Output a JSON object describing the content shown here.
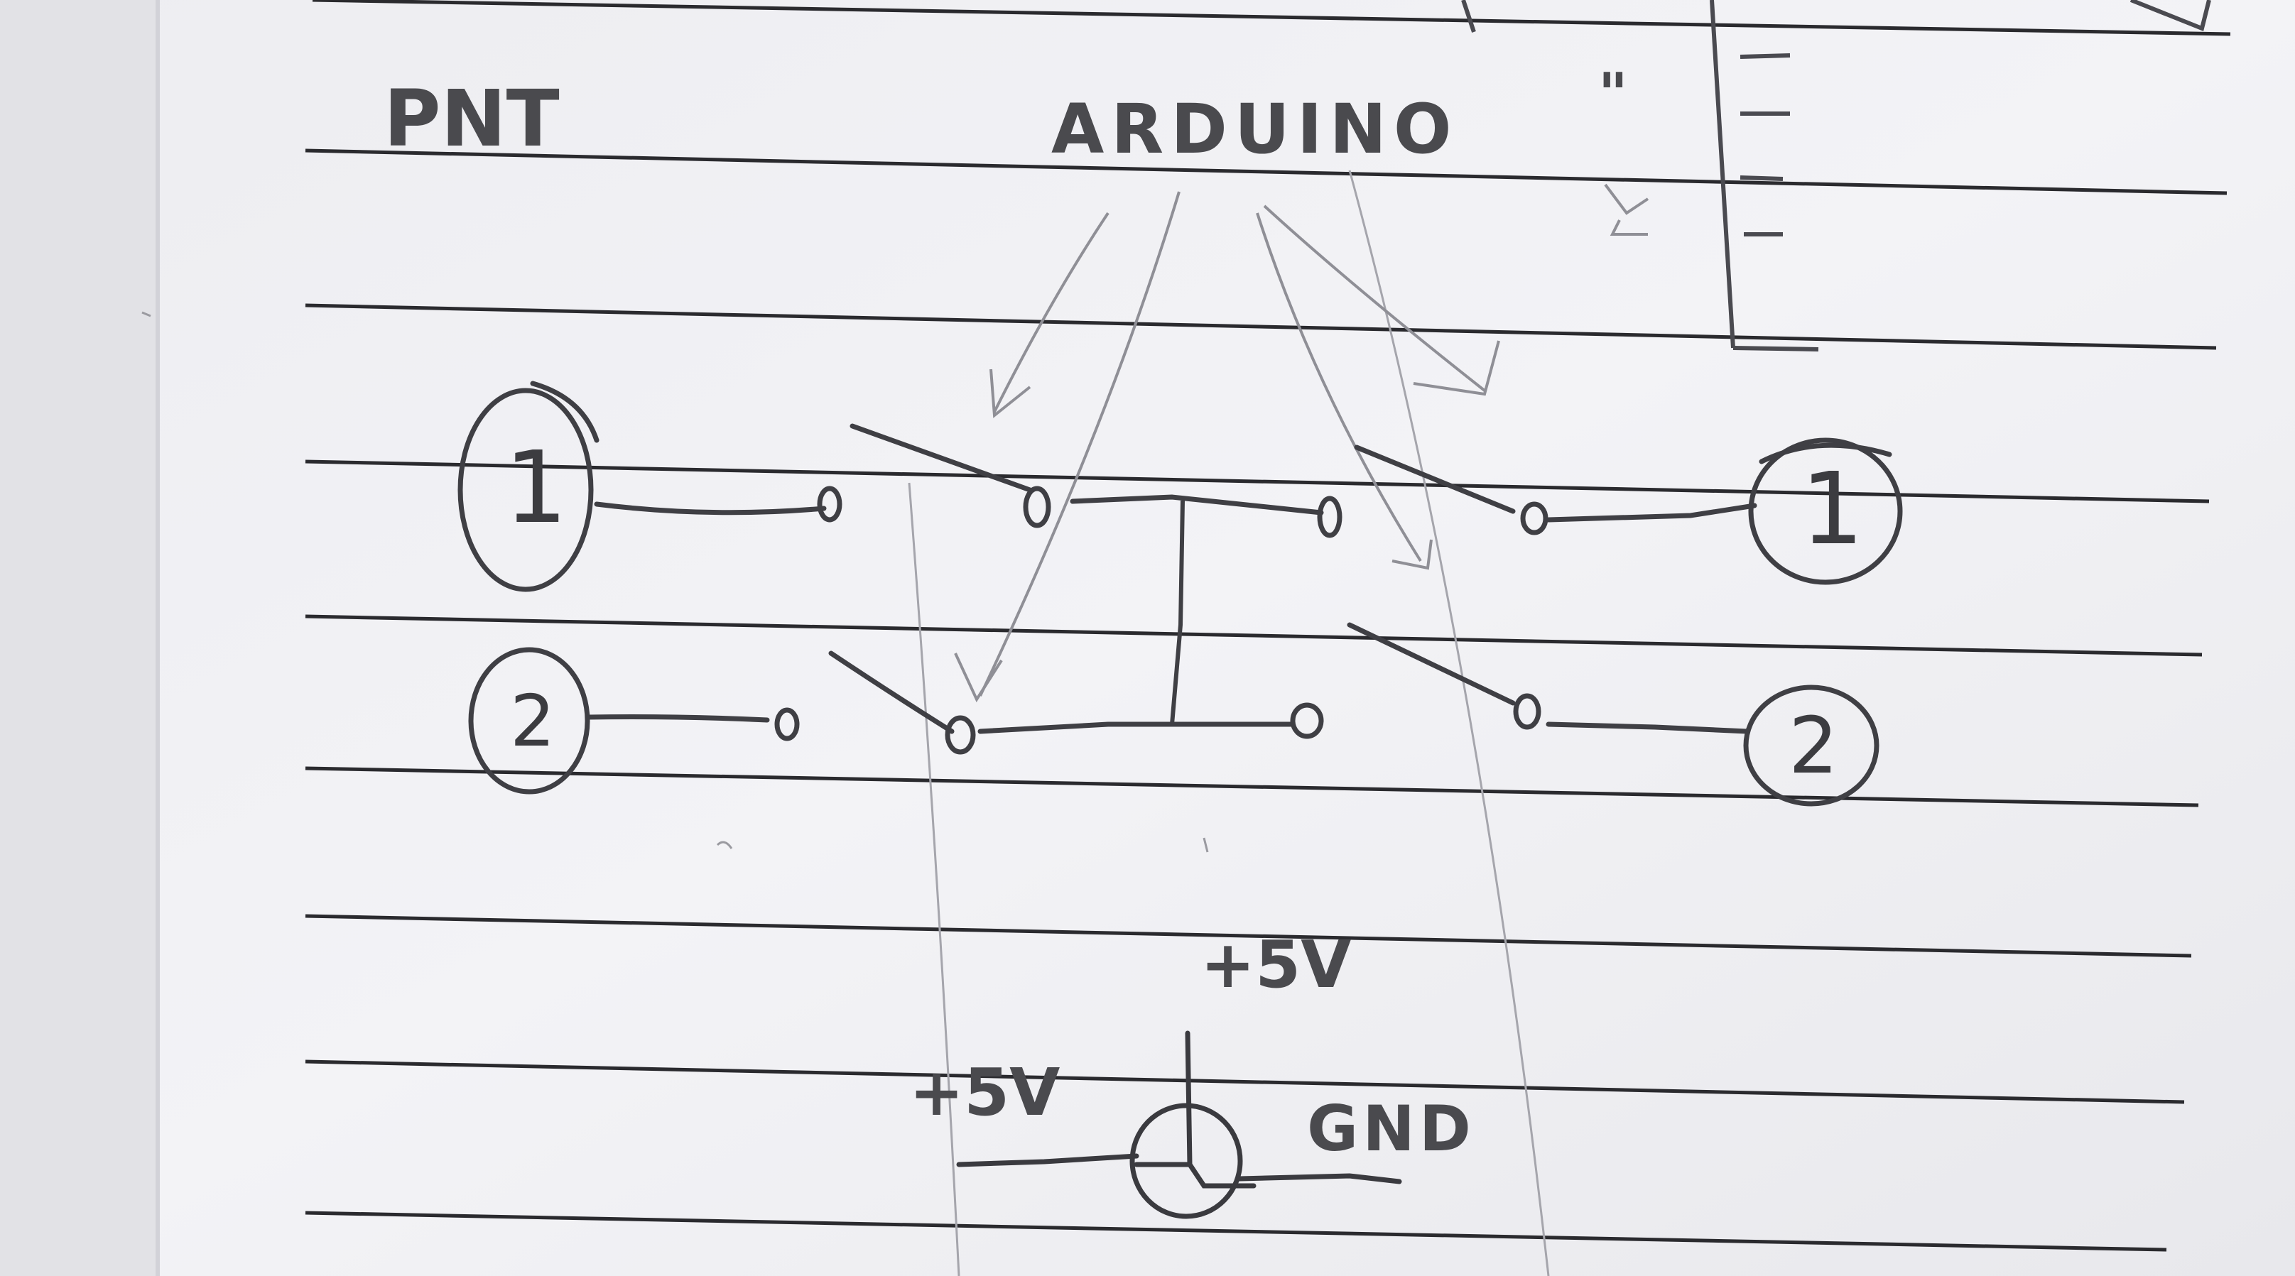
{
  "sketch": {
    "corner_scribble": "PNT",
    "controller_label": "ARDUINO",
    "quote_marks": "\"",
    "node_labels": {
      "left_top": "1",
      "left_bottom": "2",
      "right_top": "1",
      "right_bottom": "2"
    },
    "power_labels": {
      "upper_plus": "+5V",
      "left_plus": "+5V",
      "ground": "GND"
    }
  },
  "colors": {
    "paper": "#f1f1f4",
    "margin_strip": "#e3e3e7",
    "ruled_line": "#2a2a2e",
    "pencil": "#3f3f44",
    "faint_pencil": "#8f8f96"
  }
}
